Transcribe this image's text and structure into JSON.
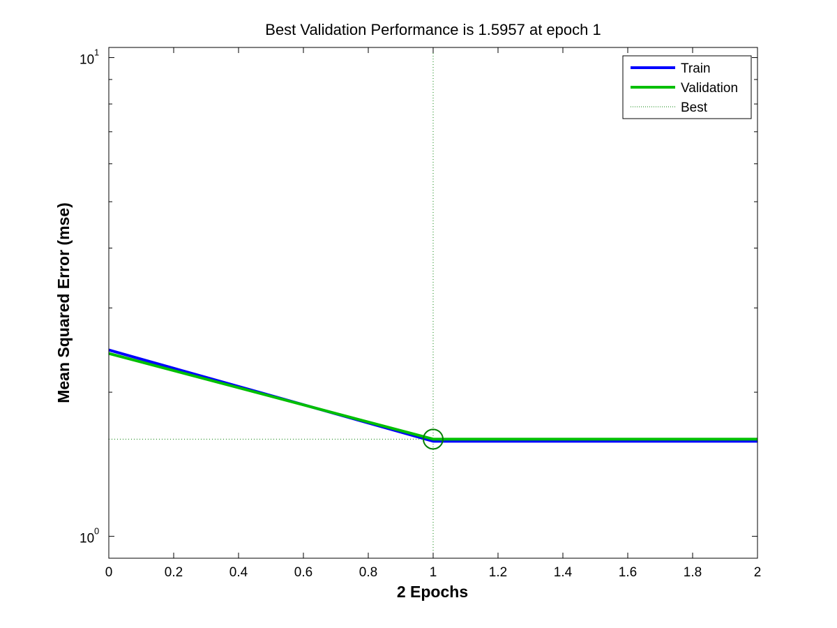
{
  "chart_data": {
    "type": "line",
    "title": "Best Validation Performance is 1.5957 at epoch 1",
    "xlabel": "2 Epochs",
    "ylabel": "Mean Squared Error  (mse)",
    "xlim": [
      0,
      2
    ],
    "ylim": [
      0.9,
      10.5
    ],
    "yscale": "log",
    "grid": false,
    "legend_position": "top-right",
    "x": [
      0,
      1,
      2
    ],
    "series": [
      {
        "name": "Train",
        "values": [
          2.45,
          1.58,
          1.58
        ],
        "color": "#0000ff"
      },
      {
        "name": "Validation",
        "values": [
          2.41,
          1.5957,
          1.5957
        ],
        "color": "#00bf00"
      }
    ],
    "best": {
      "name": "Best",
      "epoch": 1,
      "value": 1.5957,
      "color": "#007f00"
    },
    "x_ticks": [
      {
        "value": 0,
        "label": "0"
      },
      {
        "value": 0.2,
        "label": "0.2"
      },
      {
        "value": 0.4,
        "label": "0.4"
      },
      {
        "value": 0.6,
        "label": "0.6"
      },
      {
        "value": 0.8,
        "label": "0.8"
      },
      {
        "value": 1,
        "label": "1"
      },
      {
        "value": 1.2,
        "label": "1.2"
      },
      {
        "value": 1.4,
        "label": "1.4"
      },
      {
        "value": 1.6,
        "label": "1.6"
      },
      {
        "value": 1.8,
        "label": "1.8"
      },
      {
        "value": 2,
        "label": "2"
      }
    ],
    "y_major_ticks": [
      {
        "value": 1,
        "base": "10",
        "exponent": "0"
      },
      {
        "value": 10,
        "base": "10",
        "exponent": "1"
      }
    ],
    "y_minor_ticks": [
      2,
      3,
      4,
      5,
      6,
      7,
      8,
      9
    ]
  }
}
